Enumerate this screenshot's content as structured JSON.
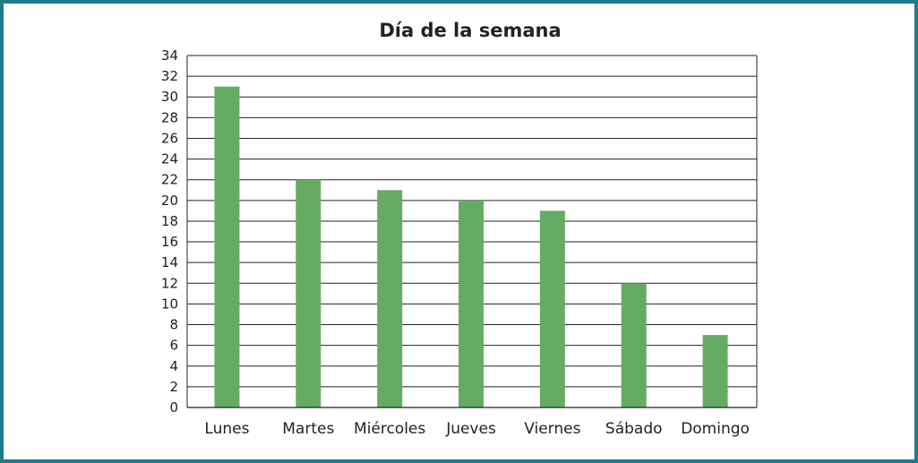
{
  "chart_data": {
    "type": "bar",
    "title": "Día de la semana",
    "xlabel": "",
    "ylabel": "",
    "categories": [
      "Lunes",
      "Martes",
      "Miércoles",
      "Jueves",
      "Viernes",
      "Sábado",
      "Domingo"
    ],
    "values": [
      31,
      22,
      21,
      20,
      19,
      12,
      7
    ],
    "ylim": [
      0,
      34
    ],
    "yticks": [
      0,
      2,
      4,
      6,
      8,
      10,
      12,
      14,
      16,
      18,
      20,
      22,
      24,
      26,
      28,
      30,
      32,
      34
    ],
    "grid": true,
    "bar_color": "#66ab63",
    "frame_color": "#1f7b8f"
  }
}
